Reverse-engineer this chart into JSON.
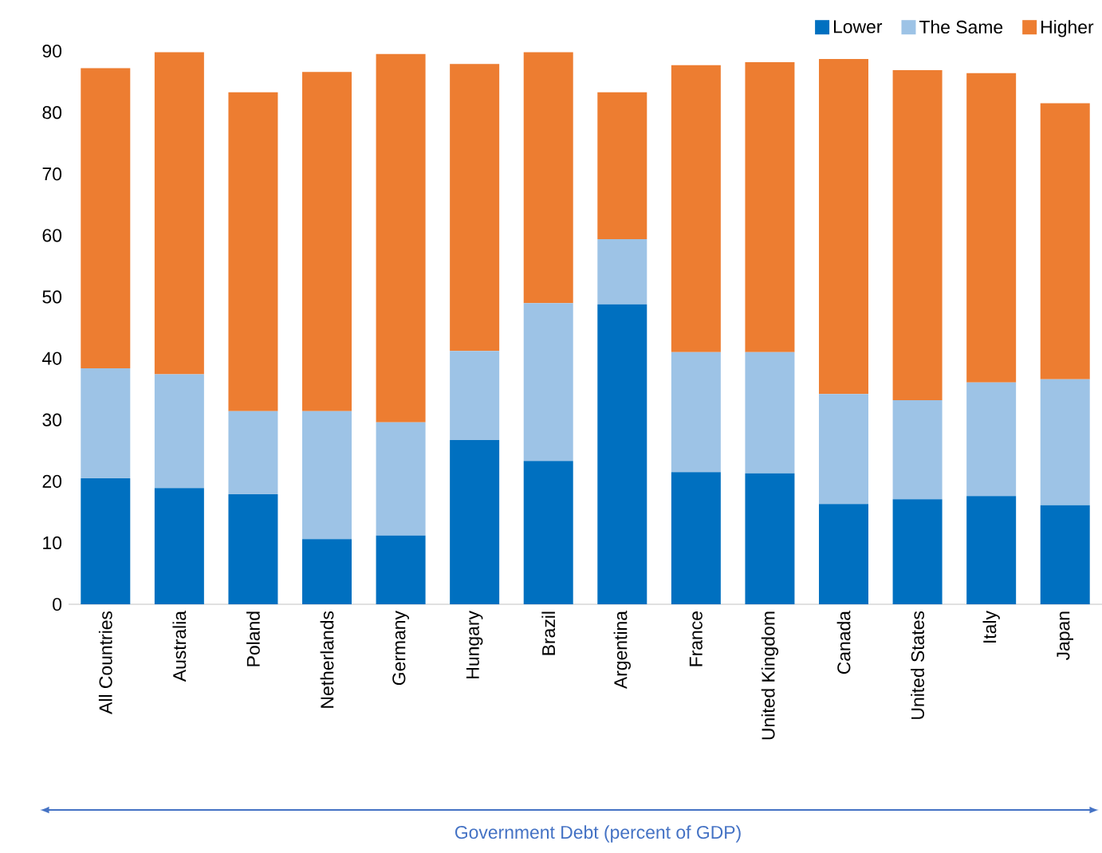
{
  "chart_data": {
    "type": "bar",
    "stacked": true,
    "xlabel": "Government Debt (percent of GDP)",
    "categories": [
      "All Countries",
      "Australia",
      "Poland",
      "Netherlands",
      "Germany",
      "Hungary",
      "Brazil",
      "Argentina",
      "France",
      "United Kingdom",
      "Canada",
      "United States",
      "Italy",
      "Japan"
    ],
    "series": [
      {
        "name": "Lower",
        "color": "#0070c0",
        "values": [
          20.5,
          18.9,
          17.9,
          10.6,
          11.2,
          26.7,
          23.3,
          48.8,
          21.5,
          21.3,
          16.3,
          17.1,
          17.6,
          16.1
        ]
      },
      {
        "name": "The Same",
        "color": "#9dc3e6",
        "values": [
          17.9,
          18.5,
          13.5,
          20.8,
          18.4,
          14.5,
          25.7,
          10.6,
          19.5,
          19.7,
          17.9,
          16.1,
          18.5,
          20.5
        ]
      },
      {
        "name": "Higher",
        "color": "#ed7d31",
        "values": [
          48.8,
          52.4,
          51.9,
          55.2,
          59.9,
          46.7,
          40.8,
          23.9,
          46.7,
          47.2,
          54.5,
          53.7,
          50.3,
          44.9
        ]
      }
    ],
    "ylim": [
      0,
      90
    ],
    "yticks": [
      0,
      10,
      20,
      30,
      40,
      50,
      60,
      70,
      80,
      90
    ],
    "legend": "top right"
  }
}
